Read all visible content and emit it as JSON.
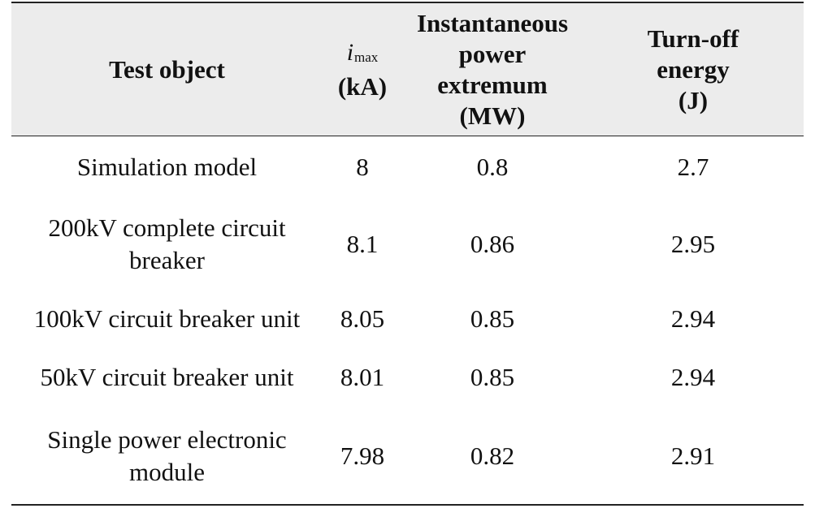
{
  "table": {
    "headers": {
      "test_object": "Test object",
      "imax_symbol": "i",
      "imax_subscript": "max",
      "imax_unit": "(kA)",
      "power_line1": "Instantaneous",
      "power_line2": "power extremum",
      "power_unit": "(MW)",
      "energy_line1": "Turn-off",
      "energy_line2": "energy",
      "energy_unit": "(J)"
    },
    "rows": [
      {
        "name_line1": "Simulation model",
        "name_line2": "",
        "imax": "8",
        "power": "0.8",
        "energy": "2.7"
      },
      {
        "name_line1": "200kV complete circuit",
        "name_line2": "breaker",
        "imax": "8.1",
        "power": "0.86",
        "energy": "2.95"
      },
      {
        "name_line1": "100kV circuit breaker unit",
        "name_line2": "",
        "imax": "8.05",
        "power": "0.85",
        "energy": "2.94"
      },
      {
        "name_line1": "50kV circuit breaker unit",
        "name_line2": "",
        "imax": "8.01",
        "power": "0.85",
        "energy": "2.94"
      },
      {
        "name_line1": "Single power electronic",
        "name_line2": "module",
        "imax": "7.98",
        "power": "0.82",
        "energy": "2.91"
      }
    ]
  }
}
